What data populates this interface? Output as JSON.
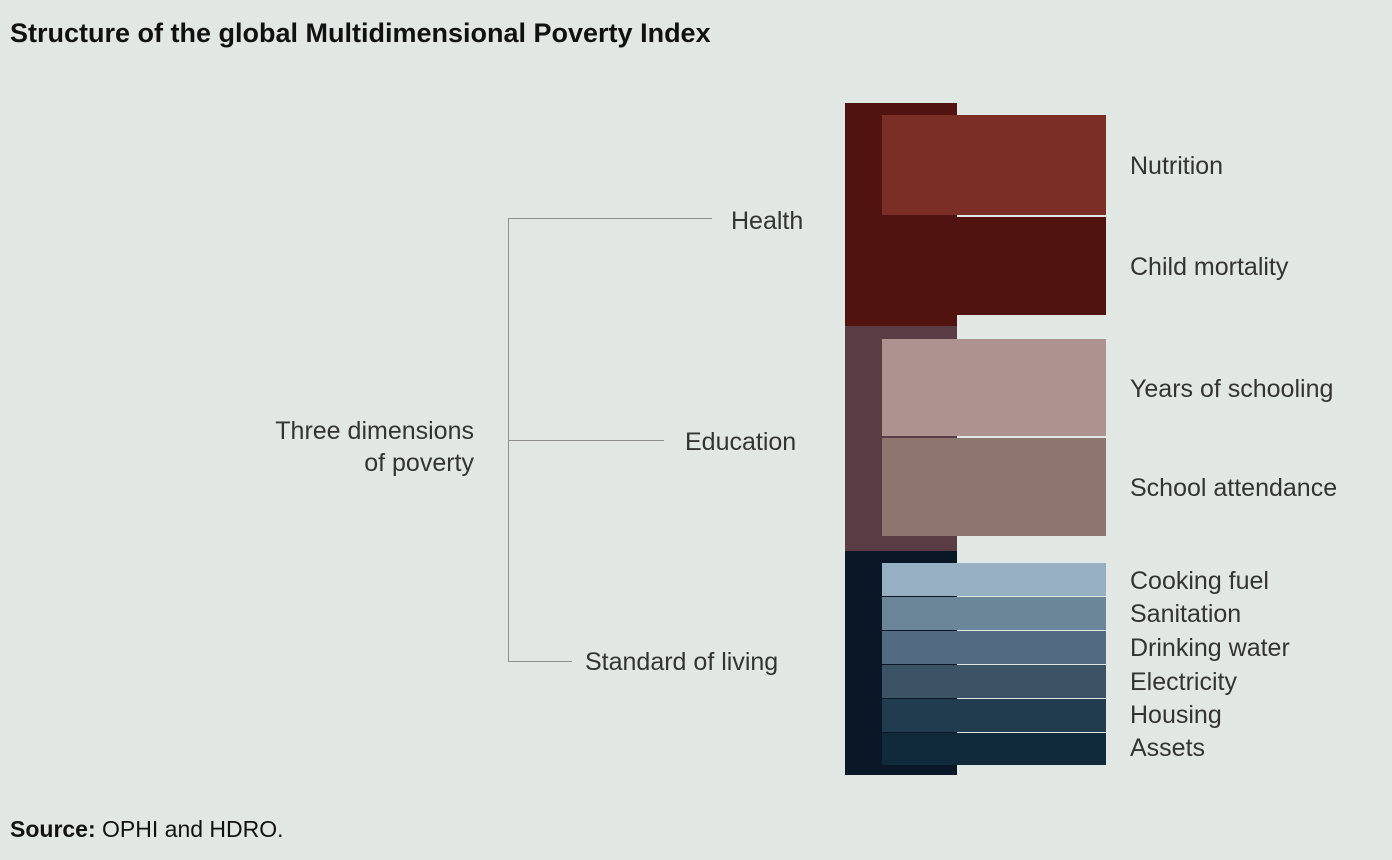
{
  "title": "Structure of the global Multidimensional Poverty Index",
  "root": {
    "line1": "Three dimensions",
    "line2": "of poverty"
  },
  "dimensions": [
    {
      "name": "Health",
      "color": "#50130f",
      "indicators": [
        {
          "name": "Nutrition",
          "color": "#7b2e25"
        },
        {
          "name": "Child mortality",
          "color": "#50130f"
        }
      ]
    },
    {
      "name": "Education",
      "color": "#5a3d44",
      "indicators": [
        {
          "name": "Years of schooling",
          "color": "#ad9290"
        },
        {
          "name": "School attendance",
          "color": "#8e766e"
        }
      ]
    },
    {
      "name": "Standard of living",
      "color": "#091727",
      "indicators": [
        {
          "name": "Cooking fuel",
          "color": "#97afc3"
        },
        {
          "name": "Sanitation",
          "color": "#6b8599"
        },
        {
          "name": "Drinking water",
          "color": "#536b82"
        },
        {
          "name": "Electricity",
          "color": "#3c5265"
        },
        {
          "name": "Housing",
          "color": "#213b4f"
        },
        {
          "name": "Assets",
          "color": "#102a3c"
        }
      ]
    }
  ],
  "source": {
    "label": "Source:",
    "text": "OPHI and HDRO."
  }
}
